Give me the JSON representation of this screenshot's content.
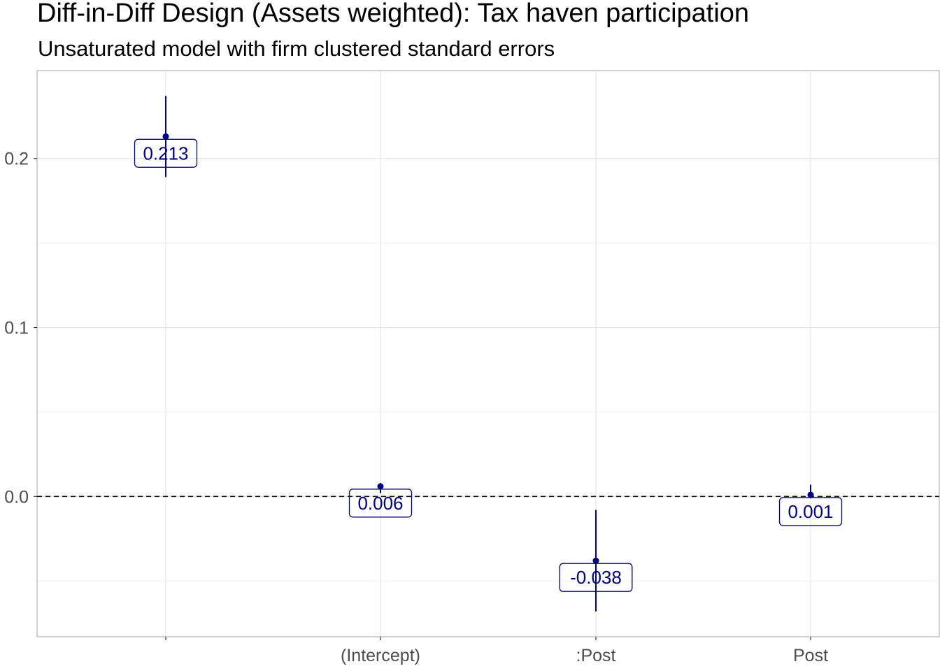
{
  "chart_data": {
    "type": "pointrange",
    "title": "Diff-in-Diff Design (Assets weighted): Tax haven participation",
    "subtitle": "Unsaturated model with firm clustered standard errors",
    "xlabel": "",
    "ylabel": "",
    "categories": [
      "",
      "(Intercept)",
      ":Post",
      "Post"
    ],
    "estimates": [
      0.213,
      0.006,
      -0.038,
      0.001
    ],
    "conf_low": [
      0.189,
      0.002,
      -0.068,
      -0.001
    ],
    "conf_high": [
      0.237,
      0.008,
      -0.008,
      0.007
    ],
    "data_labels": [
      "0.213",
      "0.006",
      "-0.038",
      "0.001"
    ],
    "ylim": [
      -0.083,
      0.252
    ],
    "y_ticks": [
      0.0,
      0.1,
      0.2
    ],
    "y_tick_labels": [
      "0.0",
      "0.1",
      "0.2"
    ],
    "y_minor_ticks": [
      -0.05,
      0.05,
      0.15
    ],
    "reference_line": 0,
    "grid": true,
    "legend": "none",
    "colors": {
      "point": "#000080",
      "label_text": "#000080",
      "label_border": "#000080",
      "reference_line": "#000000",
      "grid": "#e5e5e5",
      "panel_border": "#b3b3b3"
    }
  }
}
